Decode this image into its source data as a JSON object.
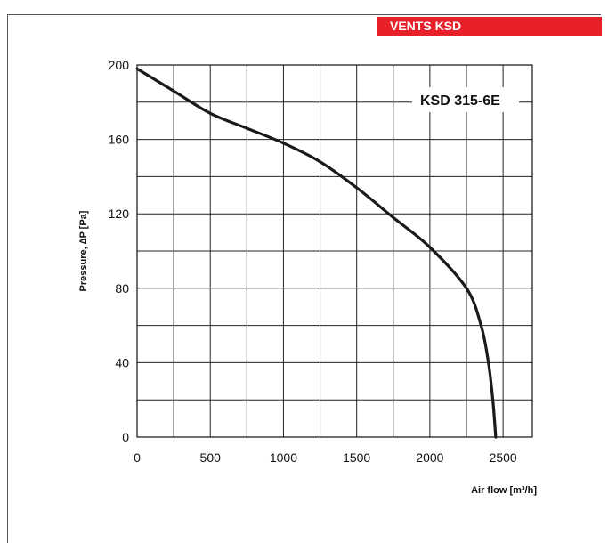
{
  "header": {
    "brand": "VENTS KSD"
  },
  "chart_data": {
    "type": "line",
    "title": "KSD 315-6E",
    "xlabel": "Air flow [m³/h]",
    "ylabel": "Pressure, ∆P [Pa]",
    "xlim": [
      0,
      2700
    ],
    "ylim": [
      0,
      200
    ],
    "x_ticks": [
      0,
      500,
      1000,
      1500,
      2000,
      2500
    ],
    "y_ticks": [
      0,
      40,
      80,
      120,
      160,
      200
    ],
    "grid": true,
    "series": [
      {
        "x": [
          0,
          250,
          500,
          750,
          1000,
          1250,
          1500,
          1750,
          2000,
          2250,
          2350,
          2400,
          2430,
          2450
        ],
        "y": [
          198,
          186,
          174,
          166,
          158,
          148,
          134,
          118,
          102,
          80,
          60,
          40,
          20,
          0
        ]
      }
    ]
  }
}
